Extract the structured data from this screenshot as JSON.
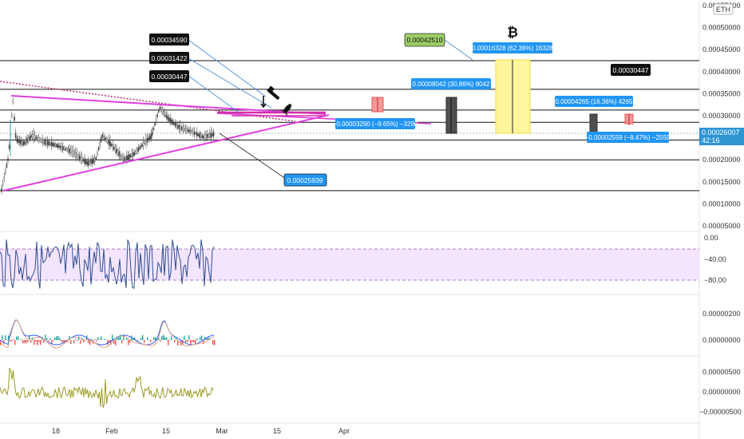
{
  "symbol_badge": "ETH",
  "price_axis": {
    "ticks": [
      {
        "value": 0.00055,
        "label": "0.00055000"
      },
      {
        "value": 0.0005,
        "label": "0.00050000"
      },
      {
        "value": 0.00045,
        "label": "0.00045000"
      },
      {
        "value": 0.0004,
        "label": "0.00040000"
      },
      {
        "value": 0.00035,
        "label": "0.00035000"
      },
      {
        "value": 0.0003,
        "label": "0.00030000"
      },
      {
        "value": 0.00025,
        "label": "0.00025000"
      },
      {
        "value": 0.0002,
        "label": "0.00020000"
      },
      {
        "value": 0.00015,
        "label": "0.00015000"
      },
      {
        "value": 0.0001,
        "label": "0.00010000"
      },
      {
        "value": 5e-05,
        "label": "0.00005000"
      }
    ],
    "current_price": "0.00026007",
    "countdown": "42:16"
  },
  "horizontal_levels": [
    0.000425,
    0.00036,
    0.000313,
    0.000285,
    0.000245,
    0.0002,
    0.00013
  ],
  "rsi": {
    "ticks": [
      "0.00",
      "−40.00",
      "−80.00"
    ],
    "band_upper": -25,
    "band_lower": -95
  },
  "macd": {
    "ticks": [
      "0.00000200",
      "0.00000000"
    ]
  },
  "osc3": {
    "ticks": [
      "0.00000500",
      "0.00000000",
      "−0.00000500"
    ]
  },
  "time_axis": {
    "labels": [
      "18",
      "Feb",
      "15",
      "Mar",
      "15",
      "Apr"
    ]
  },
  "annotations": {
    "price_label_1": "0.00034590",
    "price_label_2": "0.00031422",
    "price_label_3": "0.00030447",
    "price_label_4": "0.00042510",
    "price_label_5": "0.00030447",
    "price_label_low": "0.00025939",
    "measure_short": "−0.00003290 (−9.65%) −3290",
    "measure_mid": "0.00008042 (30.86%) 8042",
    "measure_big": "0.00016328 (62.36%) 16328",
    "measure_right": "0.00004265 (16.36%) 4265",
    "measure_right_down": "−0.00002559 (−8.47%) −2559"
  },
  "icons": {
    "bitcoin": "bitcoin-icon",
    "hammer": "hammer-icon",
    "rocket": "rocket-icon",
    "arrow": "down-arrow-icon"
  },
  "colors": {
    "candle": "#4a4a4a",
    "channel": "#e040e0",
    "dotted": "#c0307c",
    "rsi_line": "#2f4f8f",
    "rsi_band": "#f3e5fd",
    "macd_line": "#2962ff",
    "signal_line": "#e0a080",
    "osc3_line": "#9b9b24",
    "callout_blue": "#2196f3",
    "callout_black": "#111111",
    "callout_green": "#9ccc65",
    "measure_red": "#ef5350",
    "measure_gray": "#555555",
    "measure_yellow": "#fff59d"
  }
}
